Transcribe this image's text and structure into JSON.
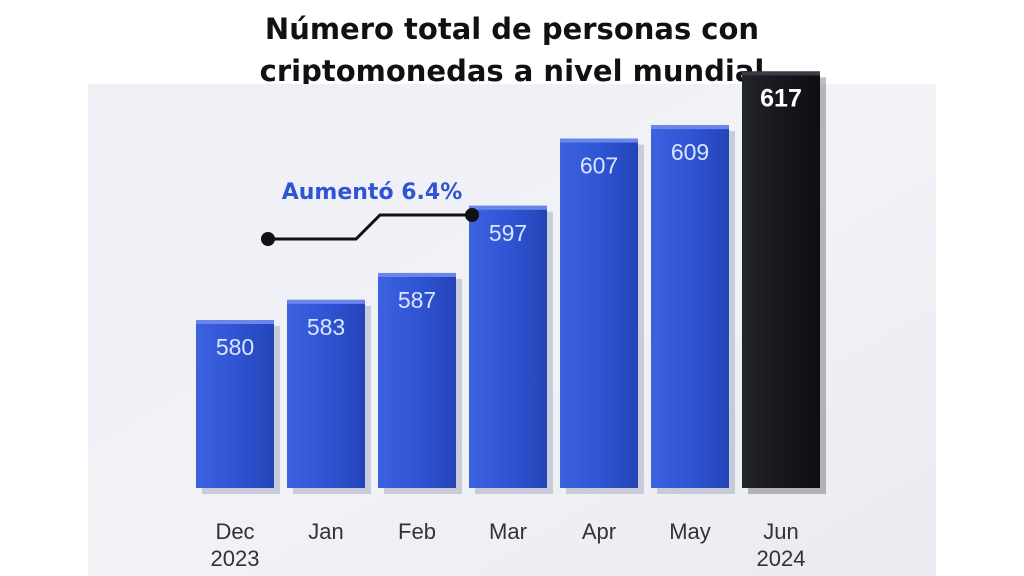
{
  "title_lines": [
    "Número total de personas con",
    "criptomonedas a nivel mundial"
  ],
  "annotation": {
    "text": "Aumentó 6.4%"
  },
  "colors": {
    "bar": "#2f55d4",
    "highlight_bar": "#16171c",
    "annotation": "#2f55d4",
    "label": "#dde4ff",
    "highlight_label": "#ffffff",
    "axis_label": "#333333"
  },
  "chart_data": {
    "type": "bar",
    "title": "Número total de personas con criptomonedas a nivel mundial",
    "categories": [
      "Dec\n2023",
      "Jan",
      "Feb",
      "Mar",
      "Apr",
      "May",
      "Jun\n2024"
    ],
    "values": [
      580,
      583,
      587,
      597,
      607,
      609,
      617
    ],
    "data_labels": [
      "580",
      "583",
      "587",
      "597",
      "607",
      "609",
      "617"
    ],
    "highlight_index": 6,
    "xlabel": "",
    "ylabel": "",
    "ylim": [
      555,
      620
    ],
    "grid": false,
    "legend": "none"
  }
}
